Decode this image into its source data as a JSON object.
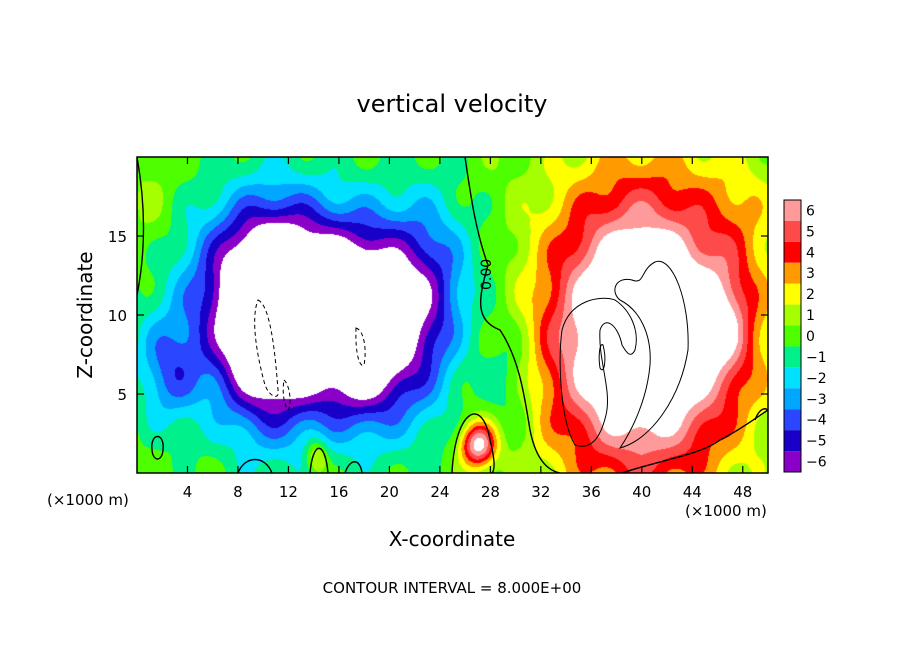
{
  "chart_data": {
    "type": "heatmap",
    "title": "vertical velocity",
    "xlabel": "X-coordinate",
    "ylabel": "Z-coordinate",
    "x_unit_left": "(×1000 m)",
    "x_unit_right": "(×1000 m)",
    "footer": "CONTOUR INTERVAL = 8.000E+00",
    "contour_label": "0.00",
    "xlim": [
      0,
      50
    ],
    "ylim": [
      0,
      20
    ],
    "x_ticks": [
      4,
      8,
      12,
      16,
      20,
      24,
      28,
      32,
      36,
      40,
      44,
      48
    ],
    "y_ticks": [
      5,
      10,
      15
    ],
    "colorbar": {
      "levels": [
        6,
        5,
        4,
        3,
        2,
        1,
        0,
        -1,
        -2,
        -3,
        -4,
        -5,
        -6
      ],
      "labels": [
        "6",
        "5",
        "4",
        "3",
        "2",
        "1",
        "0",
        "−1",
        "−2",
        "−3",
        "−4",
        "−5",
        "−6"
      ],
      "colors": [
        "#ff9a9a",
        "#ff4a4a",
        "#ff0000",
        "#ff9a00",
        "#ffff00",
        "#a6ff00",
        "#4dff00",
        "#00f08c",
        "#00e0ff",
        "#00a6ff",
        "#2a46ff",
        "#1800c8",
        "#8a00c8"
      ]
    },
    "field": {
      "background": 0,
      "features": [
        {
          "x": 10.5,
          "z": 9.5,
          "sx": 3.2,
          "sz": 4.5,
          "amp": -11
        },
        {
          "x": 18.0,
          "z": 8.5,
          "sx": 2.8,
          "sz": 3.8,
          "amp": -9
        },
        {
          "x": 14.5,
          "z": 12.5,
          "sx": 7.5,
          "sz": 3.5,
          "amp": -4.5
        },
        {
          "x": 2.5,
          "z": 6.5,
          "sx": 1.8,
          "sz": 2.5,
          "amp": -3.5
        },
        {
          "x": 23.0,
          "z": 10.0,
          "sx": 2.2,
          "sz": 5.0,
          "amp": -3
        },
        {
          "x": 29.5,
          "z": 6.0,
          "sx": 1.5,
          "sz": 3.0,
          "amp": -2
        },
        {
          "x": 40.0,
          "z": 9.0,
          "sx": 5.5,
          "sz": 6.5,
          "amp": 11
        },
        {
          "x": 46.5,
          "z": 9.5,
          "sx": 1.5,
          "sz": 2.5,
          "amp": 2.5
        },
        {
          "x": 27.0,
          "z": 1.8,
          "sx": 1.0,
          "sz": 1.0,
          "amp": 7
        },
        {
          "x": 14.2,
          "z": 1.0,
          "sx": 0.6,
          "sz": 0.8,
          "amp": 3
        },
        {
          "x": 48.0,
          "z": 17.0,
          "sx": 2.0,
          "sz": 2.5,
          "amp": 1
        },
        {
          "x": 1.0,
          "z": 16.0,
          "sx": 1.5,
          "sz": 3.0,
          "amp": 1
        }
      ]
    }
  }
}
